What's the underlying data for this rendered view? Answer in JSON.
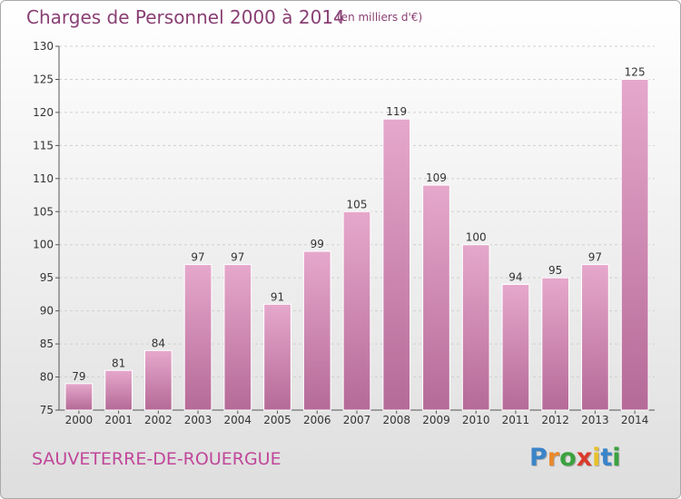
{
  "chart_data": {
    "type": "bar",
    "title": "Charges de Personnel 2000 à 2014",
    "subtitle": "(en milliers d'€)",
    "categories": [
      "2000",
      "2001",
      "2002",
      "2003",
      "2004",
      "2005",
      "2006",
      "2007",
      "2008",
      "2009",
      "2010",
      "2011",
      "2012",
      "2013",
      "2014"
    ],
    "values": [
      79,
      81,
      84,
      97,
      97,
      91,
      99,
      105,
      119,
      109,
      100,
      94,
      95,
      97,
      125
    ],
    "data_labels": [
      "79",
      "81",
      "84",
      "97",
      "97",
      "91",
      "99",
      "105",
      "119",
      "109",
      "100",
      "94",
      "95",
      "97",
      "125"
    ],
    "ylim": [
      75,
      130
    ],
    "yticks": [
      75,
      80,
      85,
      90,
      95,
      100,
      105,
      110,
      115,
      120,
      125,
      130
    ],
    "grid": true,
    "legend": "none",
    "colors": {
      "bar_top": "#e6a8cc",
      "bar_bottom": "#b56a97",
      "label": "#333333",
      "title": "#8a3f74"
    }
  },
  "footer": {
    "place": "SAUVETERRE-DE-ROUERGUE",
    "logo_letters": [
      {
        "char": "P",
        "color": "#3a84c9"
      },
      {
        "char": "r",
        "color": "#e8892b"
      },
      {
        "char": "o",
        "color": "#3aa23e"
      },
      {
        "char": "x",
        "color": "#d93a2b"
      },
      {
        "char": "i",
        "color": "#e8c12b"
      },
      {
        "char": "t",
        "color": "#3a84c9"
      },
      {
        "char": "i",
        "color": "#3aa23e"
      }
    ]
  }
}
